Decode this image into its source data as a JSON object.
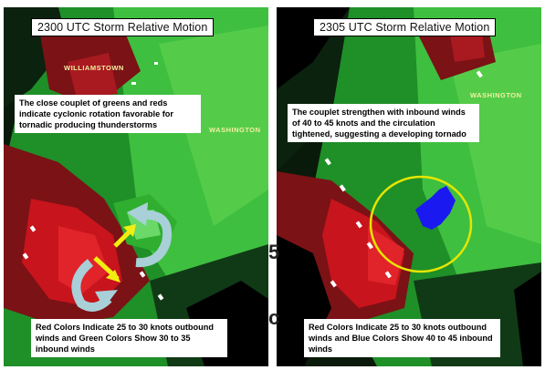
{
  "colors": {
    "inbound_green": "#2fae2f",
    "outbound_red": "#c8141c",
    "dark_red": "#7a1216",
    "strong_inbound_blue": "#1a1af0",
    "circle_yellow": "#e6e600",
    "rotation_arrow": "#a9cfd8",
    "motion_arrow": "#f2ee12"
  },
  "left_panel": {
    "title": "2300 UTC Storm Relative Motion",
    "place_north": "WILLIAMSTOWN",
    "place_east": "WASHINGTON",
    "top_note": "The close couplet of greens and reds indicate cyclonic rotation favorable for tornadic producing thunderstorms",
    "bottom_note": "Red Colors Indicate 25 to 30 knots outbound winds and Green Colors Show 30 to 35 inbound winds"
  },
  "right_panel": {
    "title": "2305 UTC Storm Relative Motion",
    "place_east": "WASHINGTON",
    "top_note": "The couplet strengthen with inbound winds of 40 to 45 knots and the circulation tightened, suggesting a developing tornado",
    "bottom_note": "Red Colors Indicate 25 to 30 knots outbound winds and Blue Colors Show 40 to 45 inbound winds"
  },
  "edge_marks": [
    "5",
    "c"
  ]
}
